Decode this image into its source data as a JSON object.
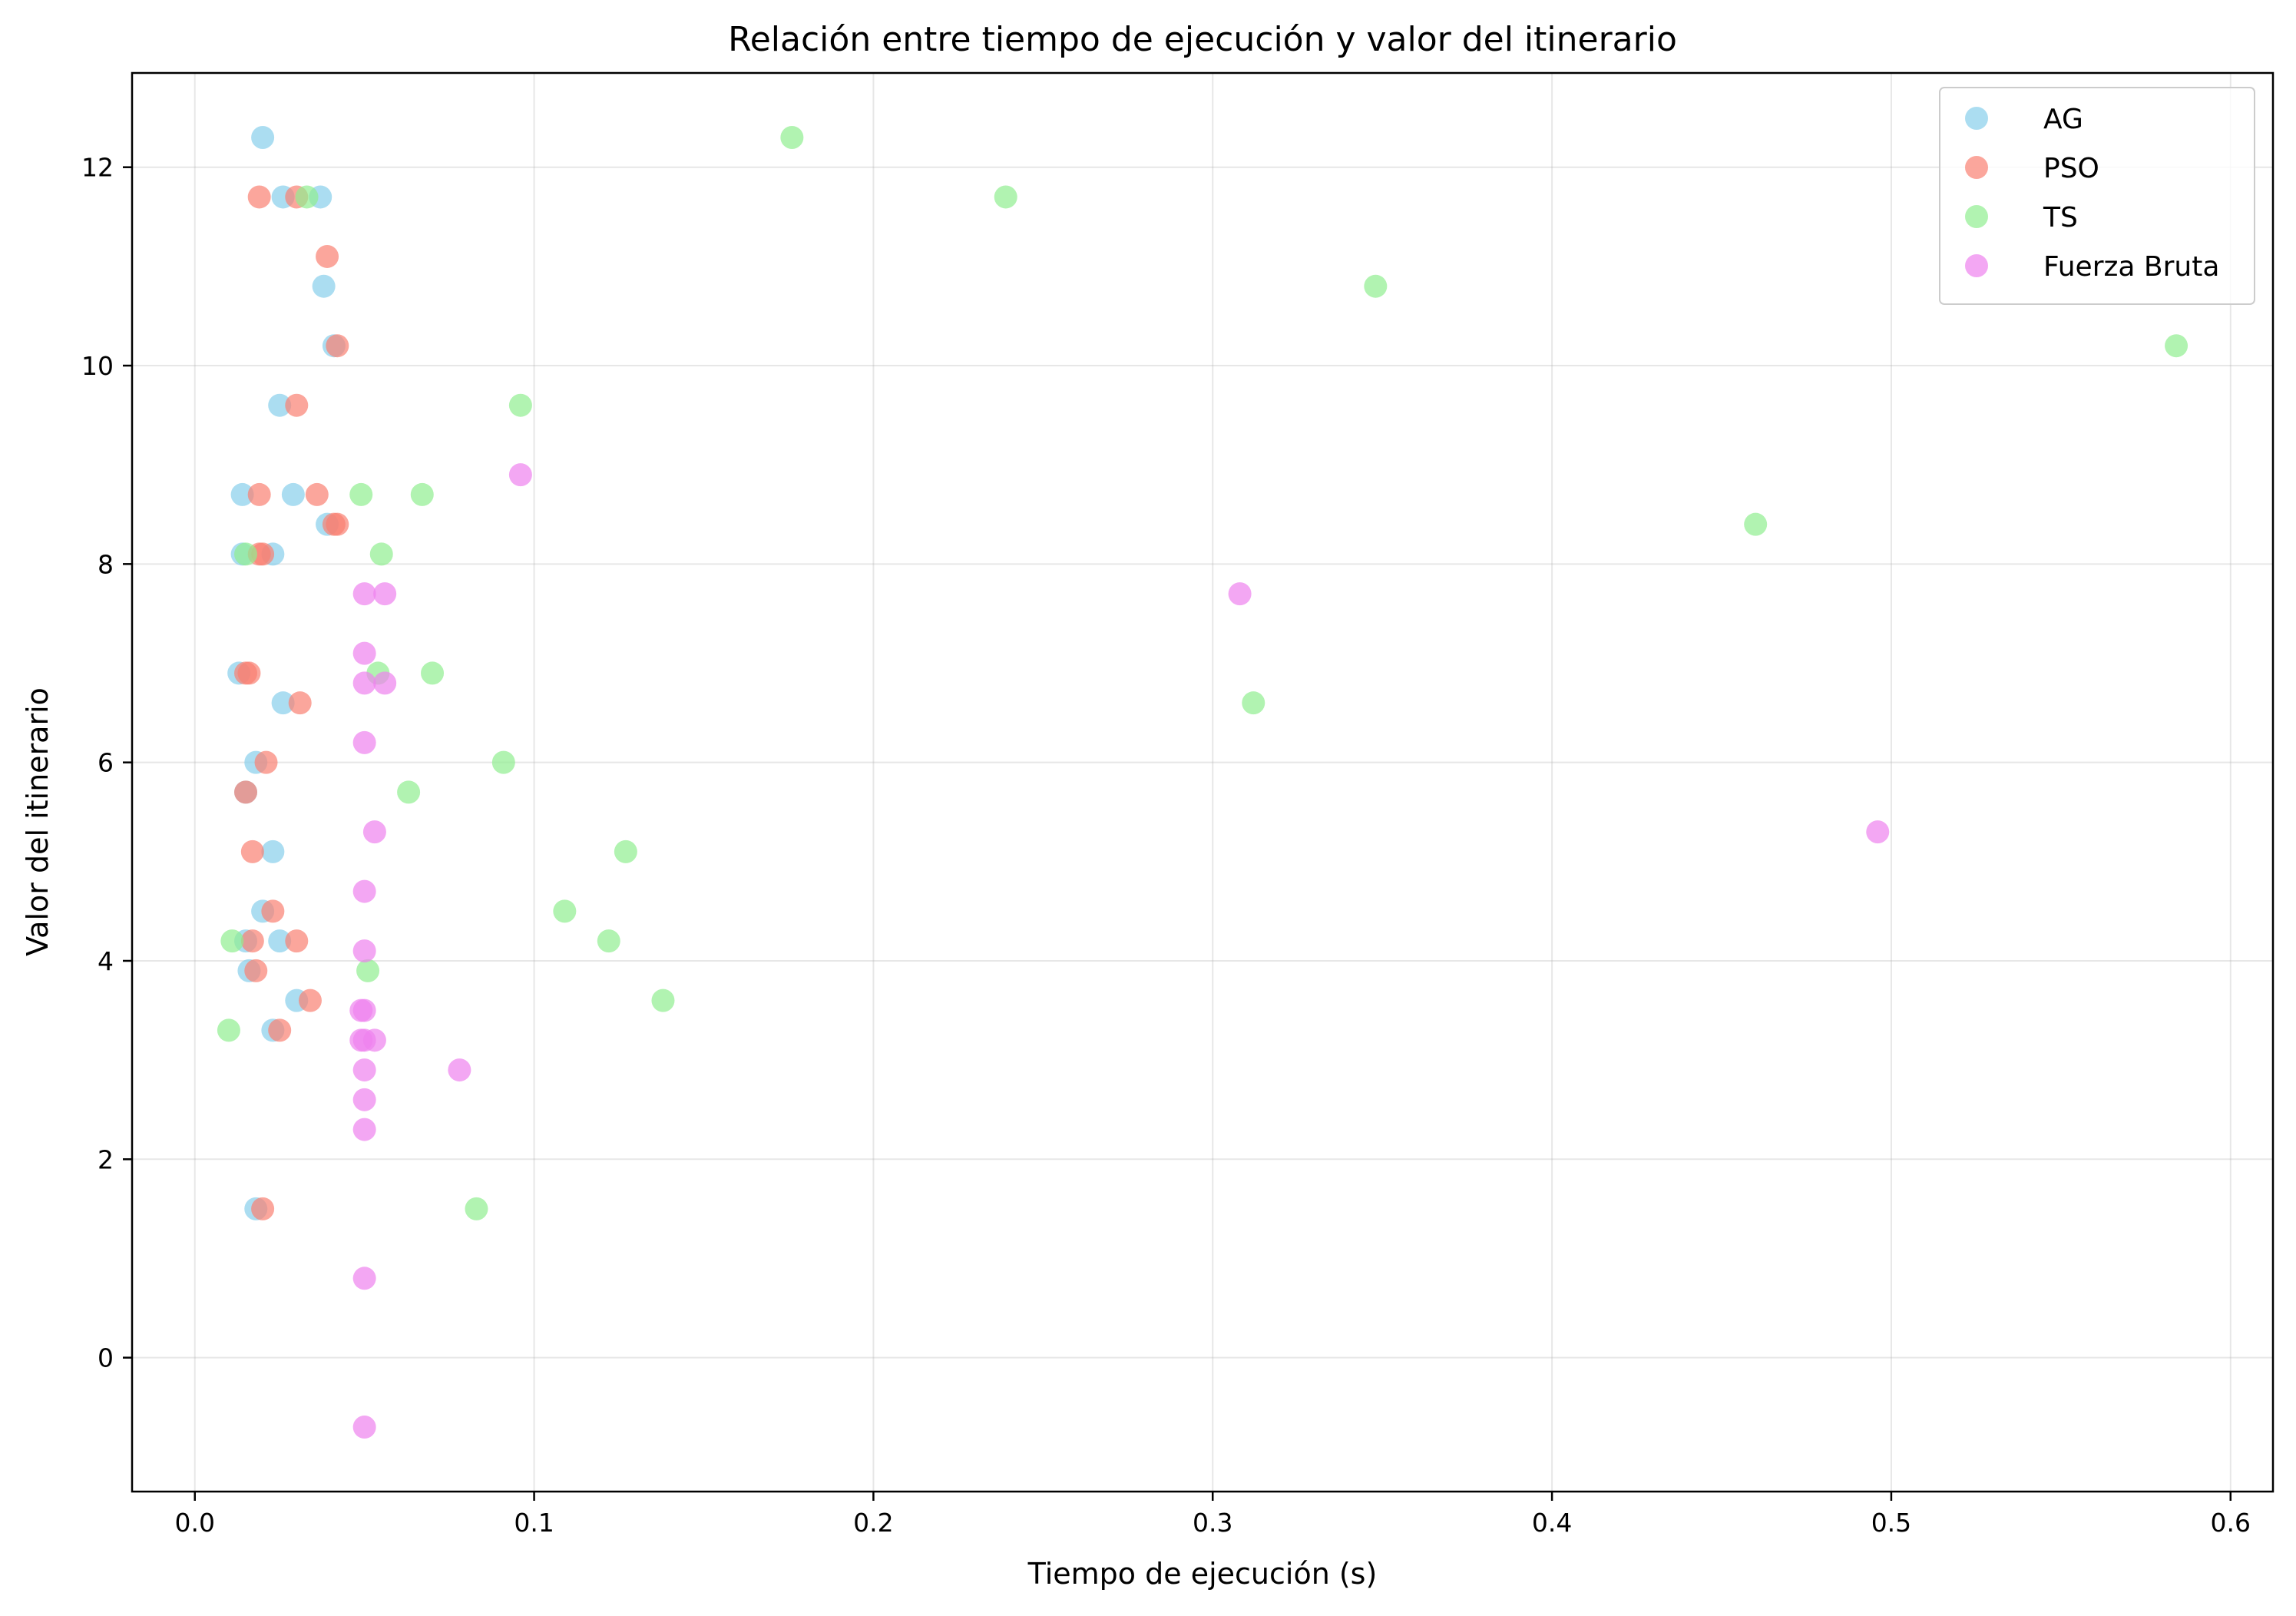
{
  "chart_data": {
    "type": "scatter",
    "title": "Relación entre tiempo de ejecución y valor del itinerario",
    "xlabel": "Tiempo de ejecución (s)",
    "ylabel": "Valor del itinerario",
    "xlim": [
      -0.0185,
      0.6125
    ],
    "ylim": [
      -1.35,
      12.95
    ],
    "xticks": [
      0.0,
      0.1,
      0.2,
      0.3,
      0.4,
      0.5,
      0.6
    ],
    "xtick_labels": [
      "0.0",
      "0.1",
      "0.2",
      "0.3",
      "0.4",
      "0.5",
      "0.6"
    ],
    "yticks": [
      0,
      2,
      4,
      6,
      8,
      10,
      12
    ],
    "ytick_labels": [
      "0",
      "2",
      "4",
      "6",
      "8",
      "10",
      "12"
    ],
    "grid": true,
    "legend_position": "top-right",
    "series": [
      {
        "name": "AG",
        "color": "#87ceeb",
        "points": [
          [
            0.02,
            12.3
          ],
          [
            0.026,
            11.7
          ],
          [
            0.037,
            11.7
          ],
          [
            0.038,
            10.8
          ],
          [
            0.041,
            10.2
          ],
          [
            0.025,
            9.6
          ],
          [
            0.014,
            8.7
          ],
          [
            0.029,
            8.7
          ],
          [
            0.039,
            8.4
          ],
          [
            0.014,
            8.1
          ],
          [
            0.023,
            8.1
          ],
          [
            0.013,
            6.9
          ],
          [
            0.026,
            6.6
          ],
          [
            0.018,
            6.0
          ],
          [
            0.015,
            5.7
          ],
          [
            0.023,
            5.1
          ],
          [
            0.02,
            4.5
          ],
          [
            0.015,
            4.2
          ],
          [
            0.025,
            4.2
          ],
          [
            0.016,
            3.9
          ],
          [
            0.03,
            3.6
          ],
          [
            0.023,
            3.3
          ],
          [
            0.018,
            1.5
          ]
        ]
      },
      {
        "name": "PSO",
        "color": "#fa8072",
        "points": [
          [
            0.019,
            11.7
          ],
          [
            0.03,
            11.7
          ],
          [
            0.039,
            11.1
          ],
          [
            0.042,
            10.2
          ],
          [
            0.03,
            9.6
          ],
          [
            0.019,
            8.7
          ],
          [
            0.036,
            8.7
          ],
          [
            0.041,
            8.4
          ],
          [
            0.042,
            8.4
          ],
          [
            0.019,
            8.1
          ],
          [
            0.02,
            8.1
          ],
          [
            0.015,
            6.9
          ],
          [
            0.016,
            6.9
          ],
          [
            0.031,
            6.6
          ],
          [
            0.021,
            6.0
          ],
          [
            0.015,
            5.7
          ],
          [
            0.017,
            5.1
          ],
          [
            0.023,
            4.5
          ],
          [
            0.017,
            4.2
          ],
          [
            0.03,
            4.2
          ],
          [
            0.018,
            3.9
          ],
          [
            0.034,
            3.6
          ],
          [
            0.025,
            3.3
          ],
          [
            0.02,
            1.5
          ]
        ]
      },
      {
        "name": "TS",
        "color": "#90ee90",
        "points": [
          [
            0.176,
            12.3
          ],
          [
            0.239,
            11.7
          ],
          [
            0.033,
            11.7
          ],
          [
            0.348,
            10.8
          ],
          [
            0.584,
            10.2
          ],
          [
            0.096,
            9.6
          ],
          [
            0.049,
            8.7
          ],
          [
            0.067,
            8.7
          ],
          [
            0.46,
            8.4
          ],
          [
            0.015,
            8.1
          ],
          [
            0.055,
            8.1
          ],
          [
            0.054,
            6.9
          ],
          [
            0.07,
            6.9
          ],
          [
            0.312,
            6.6
          ],
          [
            0.091,
            6.0
          ],
          [
            0.063,
            5.7
          ],
          [
            0.127,
            5.1
          ],
          [
            0.109,
            4.5
          ],
          [
            0.011,
            4.2
          ],
          [
            0.122,
            4.2
          ],
          [
            0.051,
            3.9
          ],
          [
            0.138,
            3.6
          ],
          [
            0.01,
            3.3
          ],
          [
            0.083,
            1.5
          ]
        ]
      },
      {
        "name": "Fuerza Bruta",
        "color": "#ee82ee",
        "points": [
          [
            0.096,
            8.9
          ],
          [
            0.05,
            7.7
          ],
          [
            0.056,
            7.7
          ],
          [
            0.308,
            7.7
          ],
          [
            0.05,
            7.1
          ],
          [
            0.05,
            6.8
          ],
          [
            0.056,
            6.8
          ],
          [
            0.05,
            6.2
          ],
          [
            0.053,
            5.3
          ],
          [
            0.496,
            5.3
          ],
          [
            0.05,
            4.7
          ],
          [
            0.05,
            4.1
          ],
          [
            0.05,
            3.5
          ],
          [
            0.049,
            3.5
          ],
          [
            0.05,
            3.2
          ],
          [
            0.053,
            3.2
          ],
          [
            0.049,
            3.2
          ],
          [
            0.05,
            2.9
          ],
          [
            0.078,
            2.9
          ],
          [
            0.05,
            2.6
          ],
          [
            0.05,
            2.3
          ],
          [
            0.05,
            0.8
          ],
          [
            0.05,
            -0.7
          ]
        ]
      }
    ]
  }
}
